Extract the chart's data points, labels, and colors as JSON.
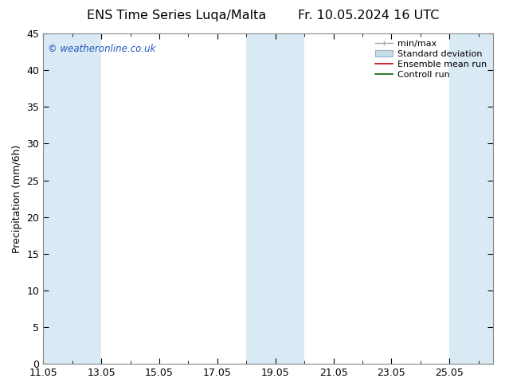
{
  "title_left": "ENS Time Series Luqa/Malta",
  "title_right": "Fr. 10.05.2024 16 UTC",
  "ylabel": "Precipitation (mm/6h)",
  "watermark": "© weatheronline.co.uk",
  "ylim": [
    0,
    45
  ],
  "yticks": [
    0,
    5,
    10,
    15,
    20,
    25,
    30,
    35,
    40,
    45
  ],
  "xtick_labels": [
    "11.05",
    "13.05",
    "15.05",
    "17.05",
    "19.05",
    "21.05",
    "23.05",
    "25.05"
  ],
  "band_color": "#daeaf5",
  "background_color": "#ffffff",
  "watermark_color": "#2255bb",
  "title_fontsize": 11.5,
  "tick_fontsize": 9,
  "ylabel_fontsize": 9,
  "legend_fontsize": 8,
  "minmax_color": "#aaaaaa",
  "std_facecolor": "#c8dcea",
  "std_edgecolor": "#9ab0c8",
  "ensemble_color": "#cc0000",
  "control_color": "#006600"
}
